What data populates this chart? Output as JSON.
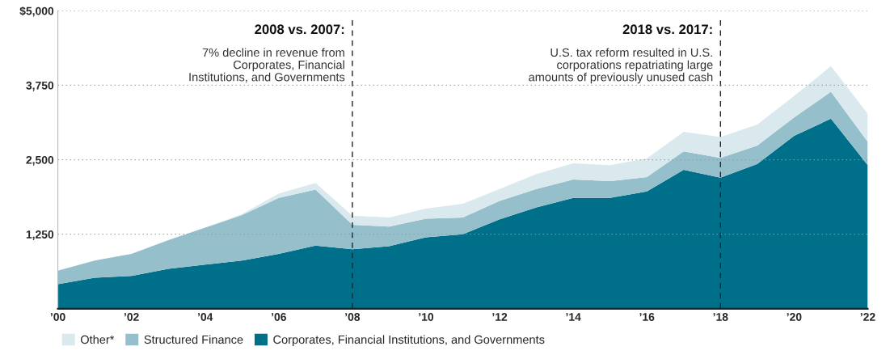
{
  "chart_data": {
    "type": "area",
    "stacked": true,
    "x": [
      2000,
      2001,
      2002,
      2003,
      2004,
      2005,
      2006,
      2007,
      2008,
      2009,
      2010,
      2011,
      2012,
      2013,
      2014,
      2015,
      2016,
      2017,
      2018,
      2019,
      2020,
      2021,
      2022
    ],
    "series": [
      {
        "name": "Corporates, Financial Institutions, and Governments",
        "color": "#006f8a",
        "values": [
          410,
          520,
          550,
          670,
          740,
          810,
          920,
          1060,
          1000,
          1050,
          1200,
          1250,
          1500,
          1700,
          1860,
          1860,
          1970,
          2330,
          2200,
          2430,
          2900,
          3190,
          2410
        ]
      },
      {
        "name": "Structured Finance",
        "color": "#96bfcc",
        "values": [
          230,
          290,
          370,
          480,
          620,
          760,
          940,
          940,
          410,
          330,
          310,
          280,
          310,
          310,
          310,
          280,
          240,
          310,
          330,
          310,
          310,
          450,
          390
        ]
      },
      {
        "name": "Other*",
        "color": "#d9e9ee",
        "values": [
          0,
          0,
          0,
          0,
          0,
          20,
          70,
          110,
          150,
          150,
          170,
          230,
          200,
          250,
          270,
          270,
          310,
          330,
          350,
          350,
          360,
          430,
          470
        ]
      }
    ],
    "xlim": [
      2000,
      2022
    ],
    "xticks": [
      {
        "value": 2000,
        "label": "’00"
      },
      {
        "value": 2002,
        "label": "’02"
      },
      {
        "value": 2004,
        "label": "’04"
      },
      {
        "value": 2006,
        "label": "’06"
      },
      {
        "value": 2008,
        "label": "’08"
      },
      {
        "value": 2010,
        "label": "’10"
      },
      {
        "value": 2012,
        "label": "’12"
      },
      {
        "value": 2014,
        "label": "’14"
      },
      {
        "value": 2016,
        "label": "’16"
      },
      {
        "value": 2018,
        "label": "’18"
      },
      {
        "value": 2020,
        "label": "’20"
      },
      {
        "value": 2022,
        "label": "’22"
      }
    ],
    "ylim": [
      0,
      5000
    ],
    "yticks": [
      {
        "value": 1250,
        "label": "1,250"
      },
      {
        "value": 2500,
        "label": "2,500"
      },
      {
        "value": 3750,
        "label": "3,750"
      },
      {
        "value": 5000,
        "label": "$5,000"
      }
    ],
    "grid": "y",
    "legend": "bottom left",
    "ref_lines": [
      {
        "axis": "x",
        "value": 2008,
        "label": "2008 vs. 2007:",
        "color": "#222222",
        "line_style": "dashed"
      },
      {
        "axis": "x",
        "value": 2018,
        "label": "2018 vs. 2017:",
        "color": "#222222",
        "line_style": "dashed"
      }
    ],
    "annotations": [
      "7% decline in revenue from\nCorporates, Financial\nInstitutions, and Governments",
      "U.S. tax reform resulted in U.S.\ncorporations repatriating large\namounts of previously unused cash"
    ]
  }
}
